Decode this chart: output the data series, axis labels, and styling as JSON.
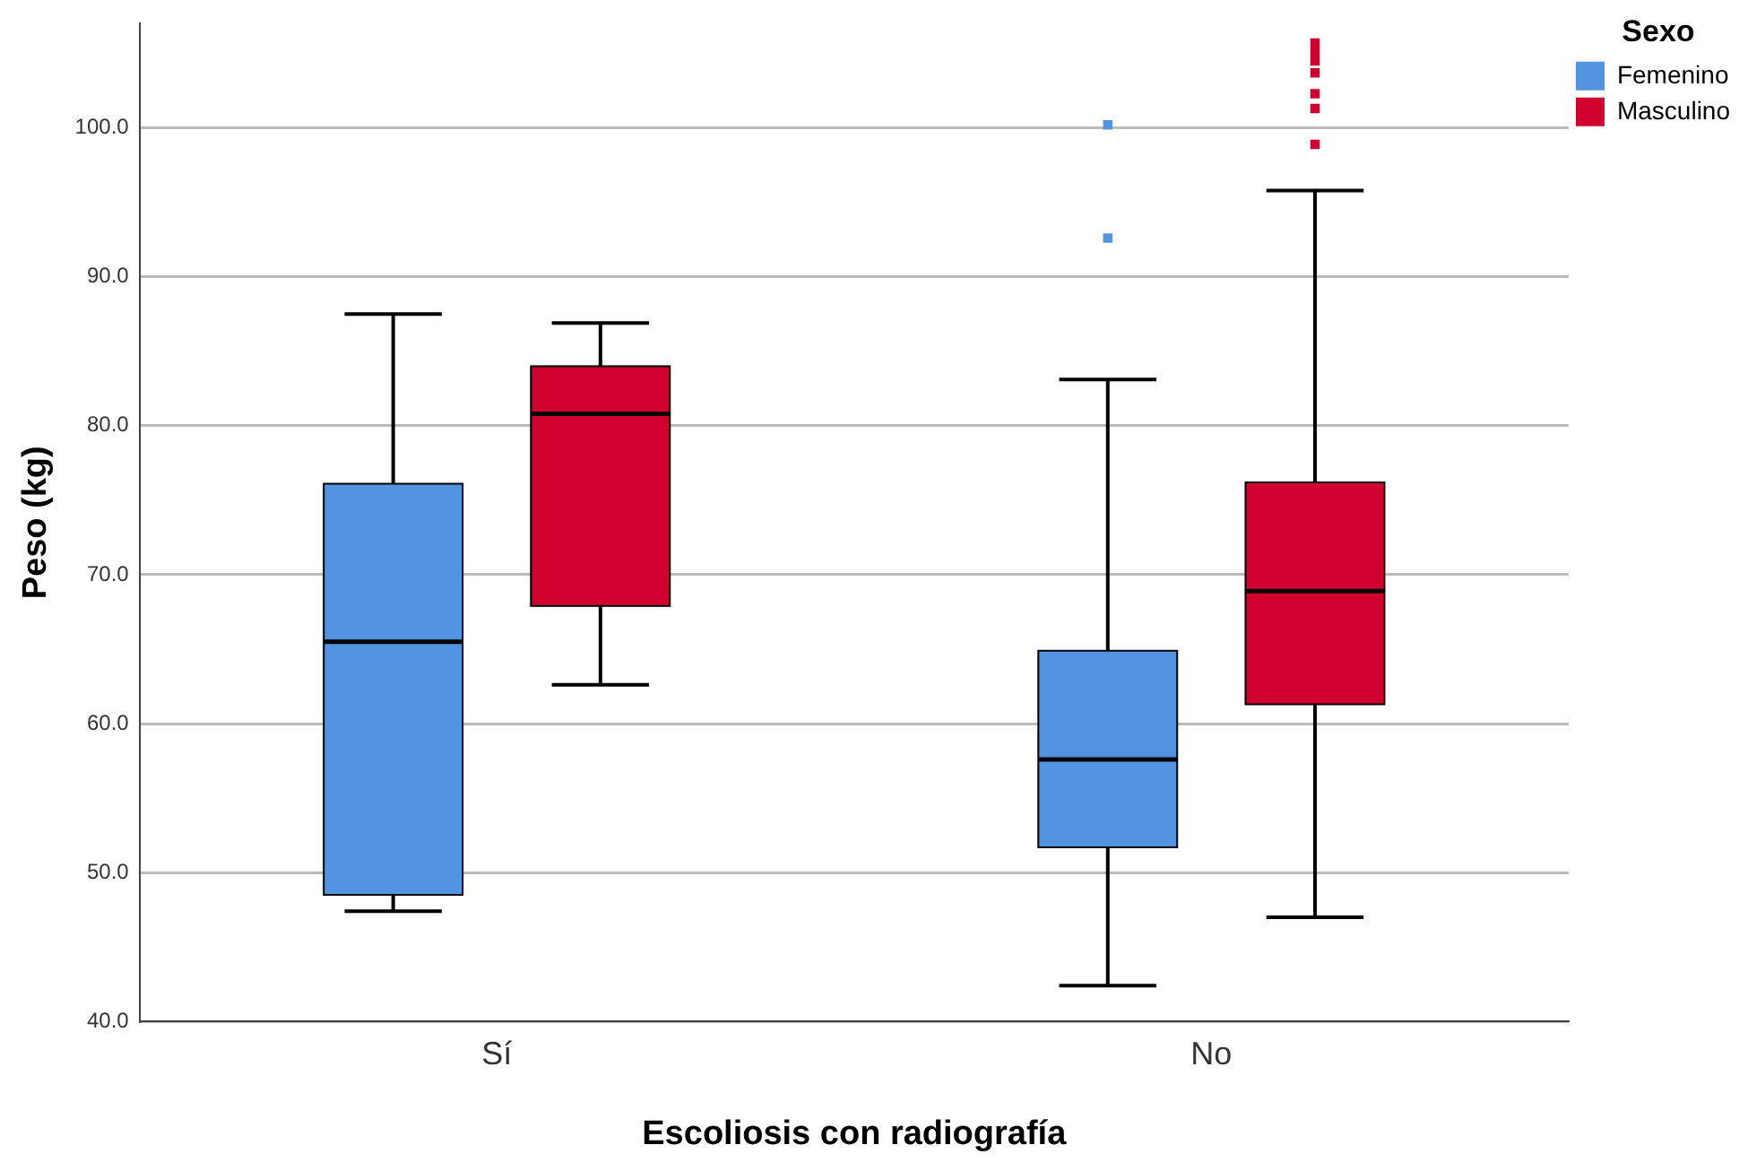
{
  "chart_data": {
    "type": "box",
    "xlabel": "Escoliosis con radiografía",
    "ylabel": "Peso (kg)",
    "legend_title": "Sexo",
    "legend": "top right",
    "grid": "y",
    "categories": [
      "Sí",
      "No"
    ],
    "ylim": [
      40,
      107
    ],
    "yticks": [
      {
        "value": 40,
        "label": "40.0"
      },
      {
        "value": 50,
        "label": "50.0"
      },
      {
        "value": 60,
        "label": "60.0"
      },
      {
        "value": 70,
        "label": "70.0"
      },
      {
        "value": 80,
        "label": "80.0"
      },
      {
        "value": 90,
        "label": "90.0"
      },
      {
        "value": 100,
        "label": "100.0"
      }
    ],
    "series": [
      {
        "name": "Femenino",
        "color": "#5294e2",
        "boxes": [
          {
            "low": 47.4,
            "q1": 48.5,
            "median": 65.5,
            "q3": 76.1,
            "high": 87.5
          },
          {
            "low": 42.4,
            "q1": 51.7,
            "median": 57.6,
            "q3": 64.9,
            "high": 83.1,
            "outliers": [
              92.6,
              100.2
            ]
          }
        ]
      },
      {
        "name": "Masculino",
        "color": "#d2002e",
        "boxes": [
          {
            "low": 62.6,
            "q1": 67.9,
            "median": 80.8,
            "q3": 84.0,
            "high": 86.9
          },
          {
            "low": 47.0,
            "q1": 61.3,
            "median": 68.9,
            "q3": 76.2,
            "high": 95.8,
            "outliers": [
              98.9,
              101.3,
              102.3,
              103.7,
              104.5,
              105.1,
              105.7
            ]
          }
        ]
      }
    ]
  }
}
